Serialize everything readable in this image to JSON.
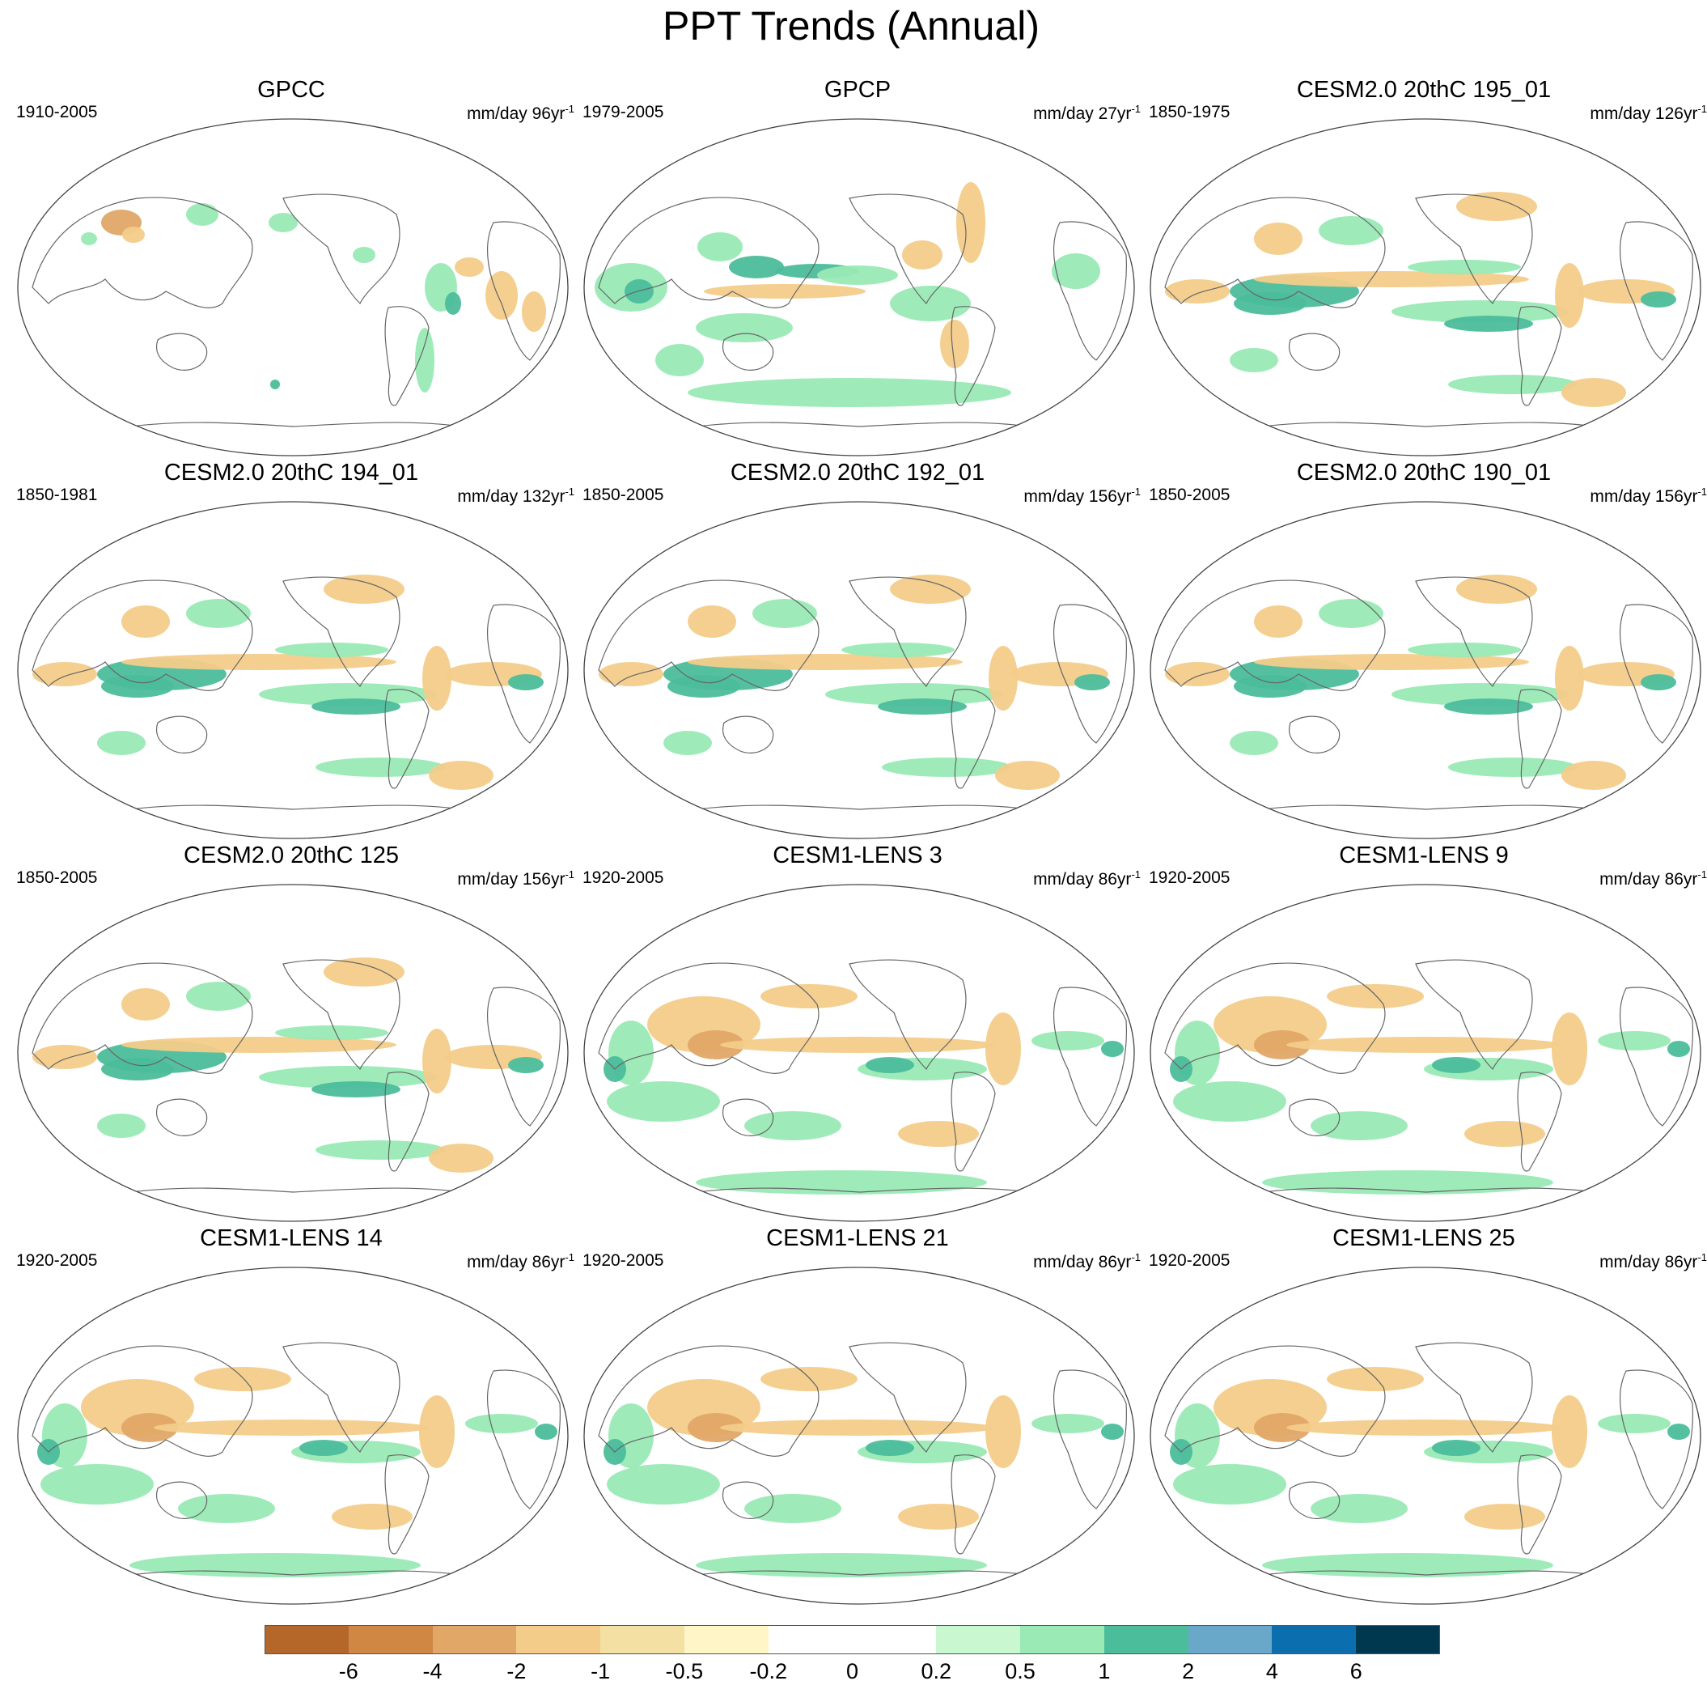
{
  "title": "PPT Trends (Annual)",
  "panels": [
    {
      "title": "GPCC",
      "period": "1910-2005",
      "units": "mm/day 96yr",
      "exponent": "-1",
      "pattern": "obs"
    },
    {
      "title": "GPCP",
      "period": "1979-2005",
      "units": "mm/day 27yr",
      "exponent": "-1",
      "pattern": "gpcp"
    },
    {
      "title": "CESM2.0 20thC 195_01",
      "period": "1850-1975",
      "units": "mm/day 126yr",
      "exponent": "-1",
      "pattern": "enso"
    },
    {
      "title": "CESM2.0 20thC 194_01",
      "period": "1850-1981",
      "units": "mm/day 132yr",
      "exponent": "-1",
      "pattern": "enso"
    },
    {
      "title": "CESM2.0 20thC 192_01",
      "period": "1850-2005",
      "units": "mm/day 156yr",
      "exponent": "-1",
      "pattern": "enso"
    },
    {
      "title": "CESM2.0 20thC 190_01",
      "period": "1850-2005",
      "units": "mm/day 156yr",
      "exponent": "-1",
      "pattern": "enso"
    },
    {
      "title": "CESM2.0 20thC 125",
      "period": "1850-2005",
      "units": "mm/day 156yr",
      "exponent": "-1",
      "pattern": "enso"
    },
    {
      "title": "CESM1-LENS 3",
      "period": "1920-2005",
      "units": "mm/day 86yr",
      "exponent": "-1",
      "pattern": "lens"
    },
    {
      "title": "CESM1-LENS 9",
      "period": "1920-2005",
      "units": "mm/day 86yr",
      "exponent": "-1",
      "pattern": "lens"
    },
    {
      "title": "CESM1-LENS 14",
      "period": "1920-2005",
      "units": "mm/day 86yr",
      "exponent": "-1",
      "pattern": "lens"
    },
    {
      "title": "CESM1-LENS 21",
      "period": "1920-2005",
      "units": "mm/day 86yr",
      "exponent": "-1",
      "pattern": "lens"
    },
    {
      "title": "CESM1-LENS 25",
      "period": "1920-2005",
      "units": "mm/day 86yr",
      "exponent": "-1",
      "pattern": "lens"
    }
  ],
  "colorbar": {
    "colors": [
      "#b5672a",
      "#cf8743",
      "#e0a767",
      "#f3cc8a",
      "#f5e0a3",
      "#fff5c6",
      "#ffffff",
      "#ffffff",
      "#c8f7d0",
      "#99eab5",
      "#4cbd9b",
      "#6aa8c9",
      "#0a6eaf",
      "#00384f"
    ],
    "labels": [
      "-6",
      "-4",
      "-2",
      "-1",
      "-0.5",
      "-0.2",
      "0",
      "0.2",
      "0.5",
      "1",
      "2",
      "4",
      "6"
    ]
  }
}
